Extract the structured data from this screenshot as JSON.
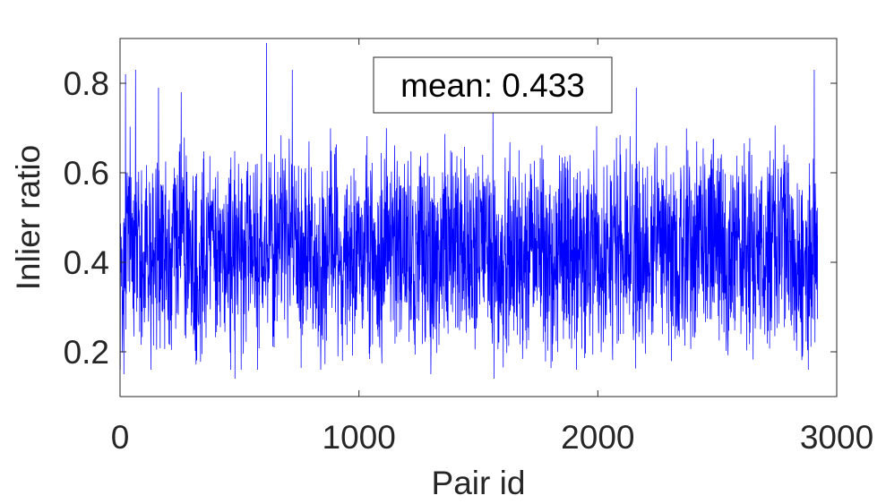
{
  "chart_data": {
    "type": "line",
    "title": "",
    "xlabel": "Pair id",
    "ylabel": "Inlier ratio",
    "xlim": [
      0,
      3000
    ],
    "ylim": [
      0.1,
      0.9
    ],
    "xticks": [
      0,
      1000,
      2000,
      3000
    ],
    "xtick_labels": [
      "0",
      "1000",
      "2000",
      "3000"
    ],
    "yticks": [
      0.2,
      0.4,
      0.6,
      0.8
    ],
    "ytick_labels": [
      "0.2",
      "0.4",
      "0.6",
      "0.8"
    ],
    "grid": false,
    "box": true,
    "annotation": "mean: 0.433",
    "series": [
      {
        "color": "#0000ff",
        "n_points": 2920,
        "mean": 0.433,
        "values_sampled_every_40": [
          0.28,
          0.53,
          0.41,
          0.36,
          0.47,
          0.32,
          0.49,
          0.44,
          0.31,
          0.52,
          0.46,
          0.38,
          0.42,
          0.35,
          0.5,
          0.48,
          0.39,
          0.55,
          0.43,
          0.37,
          0.46,
          0.33,
          0.51,
          0.4,
          0.29,
          0.47,
          0.42,
          0.36,
          0.53,
          0.45,
          0.38,
          0.41,
          0.49,
          0.34,
          0.44,
          0.47,
          0.4,
          0.36,
          0.52,
          0.43,
          0.31,
          0.46,
          0.39,
          0.48,
          0.42,
          0.35,
          0.5,
          0.41,
          0.37,
          0.45,
          0.44,
          0.33,
          0.49,
          0.46,
          0.4,
          0.38,
          0.51,
          0.43,
          0.36,
          0.47,
          0.42,
          0.39,
          0.54,
          0.45,
          0.32,
          0.48,
          0.41,
          0.46,
          0.37,
          0.5,
          0.44,
          0.35,
          0.4
        ],
        "extreme_points": [
          {
            "x": 15,
            "y": 0.15
          },
          {
            "x": 22,
            "y": 0.82
          },
          {
            "x": 64,
            "y": 0.83
          },
          {
            "x": 160,
            "y": 0.79
          },
          {
            "x": 480,
            "y": 0.14
          },
          {
            "x": 575,
            "y": 0.16
          },
          {
            "x": 612,
            "y": 0.89
          },
          {
            "x": 720,
            "y": 0.83
          },
          {
            "x": 930,
            "y": 0.18
          },
          {
            "x": 1300,
            "y": 0.15
          },
          {
            "x": 1560,
            "y": 0.75
          },
          {
            "x": 1565,
            "y": 0.14
          },
          {
            "x": 1910,
            "y": 0.16
          },
          {
            "x": 2160,
            "y": 0.79
          },
          {
            "x": 2880,
            "y": 0.16
          },
          {
            "x": 2905,
            "y": 0.83
          }
        ]
      }
    ]
  }
}
